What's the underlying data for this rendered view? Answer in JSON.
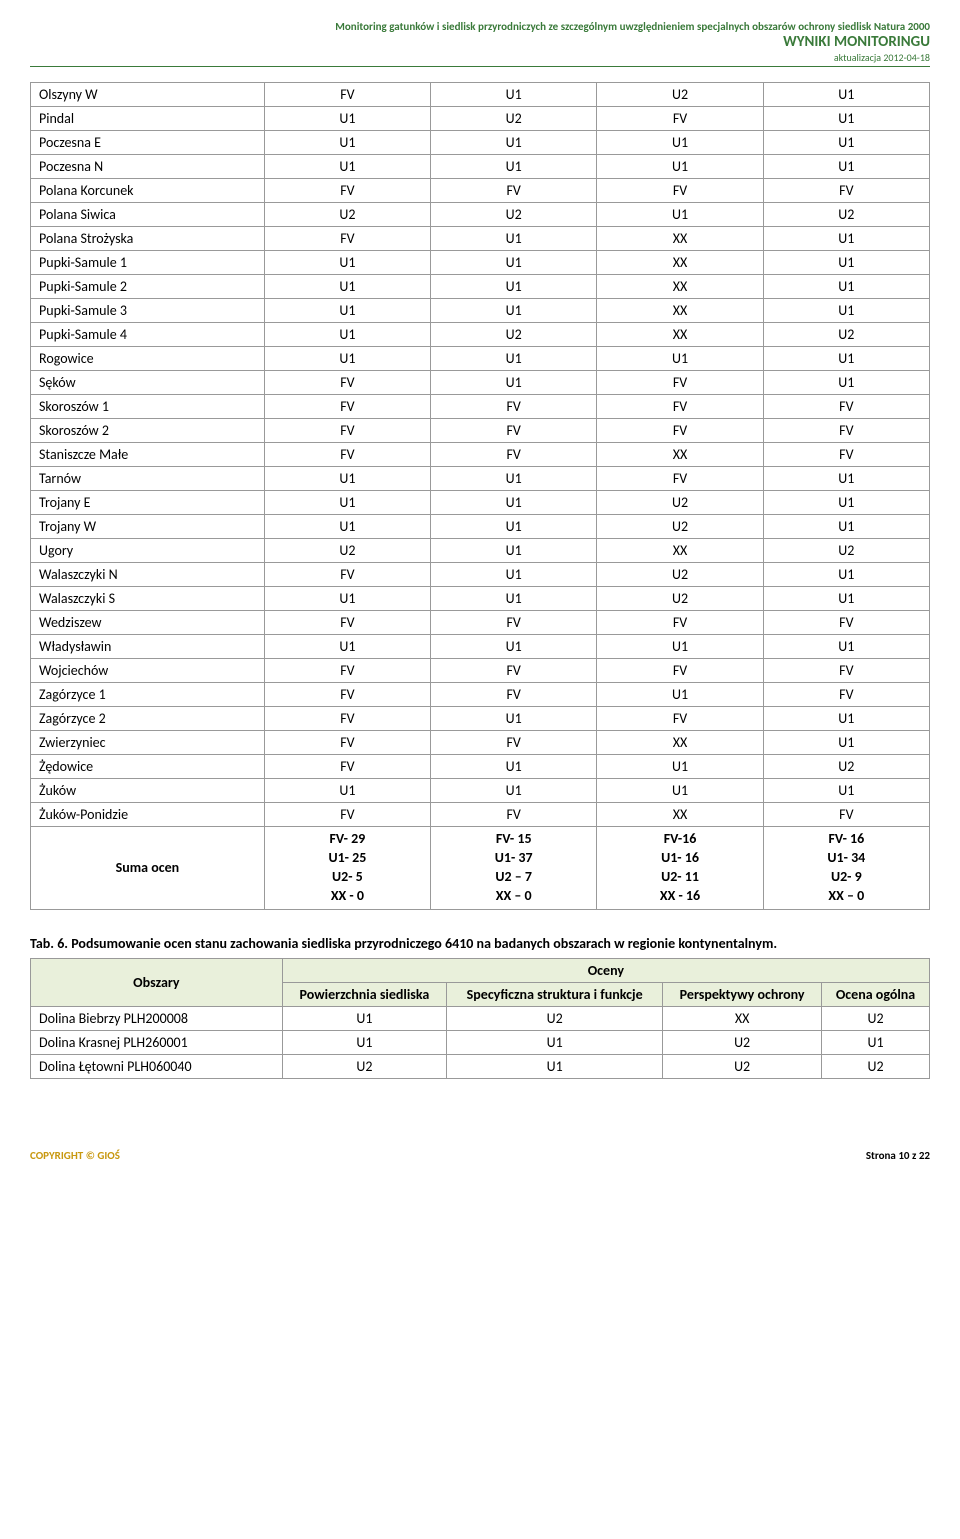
{
  "header": {
    "line1": "Monitoring gatunków i siedlisk przyrodniczych ze szczególnym uwzględnieniem specjalnych obszarów ochrony siedlisk Natura 2000",
    "line2": "WYNIKI MONITORINGU",
    "line3": "aktualizacja 2012-04-18"
  },
  "table1": {
    "rows": [
      {
        "name": "Olszyny W",
        "c": [
          "FV",
          "U1",
          "U2",
          "U1"
        ]
      },
      {
        "name": "Pindal",
        "c": [
          "U1",
          "U2",
          "FV",
          "U1"
        ]
      },
      {
        "name": "Poczesna E",
        "c": [
          "U1",
          "U1",
          "U1",
          "U1"
        ]
      },
      {
        "name": "Poczesna N",
        "c": [
          "U1",
          "U1",
          "U1",
          "U1"
        ]
      },
      {
        "name": "Polana Korcunek",
        "c": [
          "FV",
          "FV",
          "FV",
          "FV"
        ]
      },
      {
        "name": "Polana Siwica",
        "c": [
          "U2",
          "U2",
          "U1",
          "U2"
        ]
      },
      {
        "name": "Polana Strożyska",
        "c": [
          "FV",
          "U1",
          "XX",
          "U1"
        ]
      },
      {
        "name": "Pupki-Samule 1",
        "c": [
          "U1",
          "U1",
          "XX",
          "U1"
        ]
      },
      {
        "name": "Pupki-Samule 2",
        "c": [
          "U1",
          "U1",
          "XX",
          "U1"
        ]
      },
      {
        "name": "Pupki-Samule 3",
        "c": [
          "U1",
          "U1",
          "XX",
          "U1"
        ]
      },
      {
        "name": "Pupki-Samule 4",
        "c": [
          "U1",
          "U2",
          "XX",
          "U2"
        ]
      },
      {
        "name": "Rogowice",
        "c": [
          "U1",
          "U1",
          "U1",
          "U1"
        ]
      },
      {
        "name": "Sęków",
        "c": [
          "FV",
          "U1",
          "FV",
          "U1"
        ]
      },
      {
        "name": "Skoroszów 1",
        "c": [
          "FV",
          "FV",
          "FV",
          "FV"
        ]
      },
      {
        "name": "Skoroszów 2",
        "c": [
          "FV",
          "FV",
          "FV",
          "FV"
        ]
      },
      {
        "name": "Staniszcze Małe",
        "c": [
          "FV",
          "FV",
          "XX",
          "FV"
        ]
      },
      {
        "name": "Tarnów",
        "c": [
          "U1",
          "U1",
          "FV",
          "U1"
        ]
      },
      {
        "name": "Trojany E",
        "c": [
          "U1",
          "U1",
          "U2",
          "U1"
        ]
      },
      {
        "name": "Trojany W",
        "c": [
          "U1",
          "U1",
          "U2",
          "U1"
        ]
      },
      {
        "name": "Ugory",
        "c": [
          "U2",
          "U1",
          "XX",
          "U2"
        ]
      },
      {
        "name": "Walaszczyki N",
        "c": [
          "FV",
          "U1",
          "U2",
          "U1"
        ]
      },
      {
        "name": "Walaszczyki S",
        "c": [
          "U1",
          "U1",
          "U2",
          "U1"
        ]
      },
      {
        "name": "Wedziszew",
        "c": [
          "FV",
          "FV",
          "FV",
          "FV"
        ]
      },
      {
        "name": "Władysławin",
        "c": [
          "U1",
          "U1",
          "U1",
          "U1"
        ]
      },
      {
        "name": "Wojciechów",
        "c": [
          "FV",
          "FV",
          "FV",
          "FV"
        ]
      },
      {
        "name": "Zagórzyce 1",
        "c": [
          "FV",
          "FV",
          "U1",
          "FV"
        ]
      },
      {
        "name": "Zagórzyce 2",
        "c": [
          "FV",
          "U1",
          "FV",
          "U1"
        ]
      },
      {
        "name": "Zwierzyniec",
        "c": [
          "FV",
          "FV",
          "XX",
          "U1"
        ]
      },
      {
        "name": "Żędowice",
        "c": [
          "FV",
          "U1",
          "U1",
          "U2"
        ]
      },
      {
        "name": "Żuków",
        "c": [
          "U1",
          "U1",
          "U1",
          "U1"
        ]
      },
      {
        "name": "Żuków-Ponidzie",
        "c": [
          "FV",
          "FV",
          "XX",
          "FV"
        ]
      }
    ],
    "sum": {
      "label": "Suma ocen",
      "cols": [
        [
          "FV- 29",
          "U1- 25",
          "U2- 5",
          "XX - 0"
        ],
        [
          "FV- 15",
          "U1- 37",
          "U2 – 7",
          "XX – 0"
        ],
        [
          "FV-16",
          "U1- 16",
          "U2- 11",
          "XX - 16"
        ],
        [
          "FV- 16",
          "U1- 34",
          "U2- 9",
          "XX – 0"
        ]
      ]
    }
  },
  "caption": "Tab. 6. Podsumowanie ocen stanu zachowania siedliska przyrodniczego 6410 na badanych obszarach w regionie kontynentalnym.",
  "table2": {
    "headers": {
      "obszary": "Obszary",
      "oceny": "Oceny",
      "h1": "Powierzchnia siedliska",
      "h2": "Specyficzna struktura i funkcje",
      "h3": "Perspektywy ochrony",
      "h4": "Ocena ogólna"
    },
    "rows": [
      {
        "name": "Dolina Biebrzy PLH200008",
        "c": [
          "U1",
          "U2",
          "XX",
          "U2"
        ]
      },
      {
        "name": "Dolina Krasnej PLH260001",
        "c": [
          "U1",
          "U1",
          "U2",
          "U1"
        ]
      },
      {
        "name": "Dolina Łętowni PLH060040",
        "c": [
          "U2",
          "U1",
          "U2",
          "U2"
        ]
      }
    ]
  },
  "footer": {
    "left": "COPYRIGHT © GIOŚ",
    "right": "Strona 10 z 22"
  }
}
